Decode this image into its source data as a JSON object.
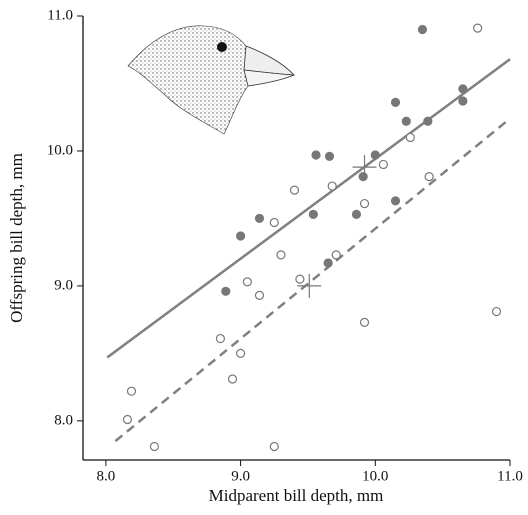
{
  "chart_data": {
    "type": "scatter",
    "x_label": "Midparent bill depth, mm",
    "y_label": "Offspring bill depth, mm",
    "xlim": [
      7.83,
      11.0
    ],
    "ylim": [
      7.71,
      11.0
    ],
    "xticks": [
      {
        "value": 8,
        "label": "8.0"
      },
      {
        "value": 9,
        "label": "9.0"
      },
      {
        "value": 10,
        "label": "10.0"
      },
      {
        "value": 11,
        "label": "11.0"
      }
    ],
    "yticks": [
      {
        "value": 8,
        "label": "8.0"
      },
      {
        "value": 9,
        "label": "9.0"
      },
      {
        "value": 10,
        "label": "10.0"
      },
      {
        "value": 11,
        "label": "11.0"
      }
    ],
    "series": [
      {
        "color": "#777777",
        "filled": true,
        "x": [
          8.89,
          9.0,
          9.14,
          9.54,
          9.56,
          9.66,
          9.65,
          9.86,
          9.91,
          10.0,
          10.15,
          10.15,
          10.23,
          10.35,
          10.39,
          10.65,
          10.65
        ],
        "values": [
          8.96,
          9.37,
          9.5,
          9.53,
          9.97,
          9.96,
          9.17,
          9.53,
          9.81,
          9.97,
          9.63,
          10.36,
          10.22,
          10.9,
          10.22,
          10.46,
          10.37
        ]
      },
      {
        "color": "#777777",
        "filled": false,
        "x": [
          8.16,
          8.19,
          8.36,
          8.85,
          8.94,
          9.0,
          9.05,
          9.14,
          9.25,
          9.25,
          9.3,
          9.4,
          9.44,
          9.68,
          9.71,
          9.92,
          9.92,
          10.06,
          10.26,
          10.4,
          10.76,
          10.9
        ],
        "values": [
          8.01,
          8.22,
          7.81,
          8.61,
          8.31,
          8.5,
          9.03,
          8.93,
          9.47,
          7.81,
          9.23,
          9.71,
          9.05,
          9.74,
          9.23,
          9.61,
          8.73,
          9.9,
          10.1,
          9.81,
          10.91,
          8.81
        ]
      }
    ],
    "lines": [
      {
        "x": [
          8.01,
          11.0
        ],
        "y": [
          8.47,
          10.68
        ],
        "color": "#808080",
        "dashed": false
      },
      {
        "x": [
          8.07,
          11.0
        ],
        "y": [
          7.85,
          10.24
        ],
        "color": "#808080",
        "dashed": true
      }
    ],
    "crosses": {
      "x": [
        9.51,
        9.92
      ],
      "y": [
        9.0,
        9.88
      ],
      "color": "#777777"
    }
  }
}
